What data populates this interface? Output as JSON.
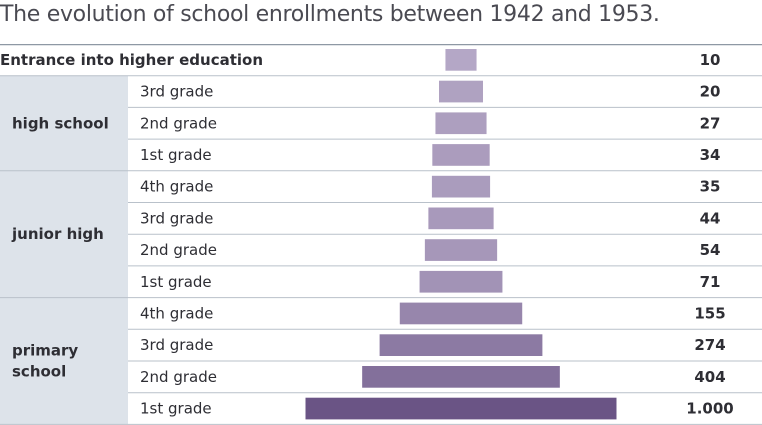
{
  "title": "The evolution of school enrollments between 1942 and 1953.",
  "chart_data": {
    "type": "bar",
    "orientation": "horizontal-centered",
    "title": "The evolution of school enrollments between 1942 and 1953.",
    "groups": [
      {
        "label": "",
        "rows": [
          {
            "label": "Entrance into higher education",
            "value": 10,
            "value_label": "10"
          }
        ]
      },
      {
        "label": "high school",
        "rows": [
          {
            "label": "3rd grade",
            "value": 20,
            "value_label": "20"
          },
          {
            "label": "2nd grade",
            "value": 27,
            "value_label": "27"
          },
          {
            "label": "1st grade",
            "value": 34,
            "value_label": "34"
          }
        ]
      },
      {
        "label": "junior high",
        "rows": [
          {
            "label": "4th grade",
            "value": 35,
            "value_label": "35"
          },
          {
            "label": "3rd grade",
            "value": 44,
            "value_label": "44"
          },
          {
            "label": "2nd grade",
            "value": 54,
            "value_label": "54"
          },
          {
            "label": "1st grade",
            "value": 71,
            "value_label": "71"
          }
        ]
      },
      {
        "label": "primary school",
        "rows": [
          {
            "label": "4th grade",
            "value": 155,
            "value_label": "155"
          },
          {
            "label": "3rd grade",
            "value": 274,
            "value_label": "274"
          },
          {
            "label": "2nd grade",
            "value": 404,
            "value_label": "404"
          },
          {
            "label": "1st grade",
            "value": 1000,
            "value_label": "1.000"
          }
        ]
      }
    ],
    "xlim": [
      0,
      1000
    ],
    "colors": {
      "light": "#c7bcd6",
      "dark": "#6a5485",
      "group_band": "#dde3ea",
      "rule": "#b9c1ca"
    }
  }
}
